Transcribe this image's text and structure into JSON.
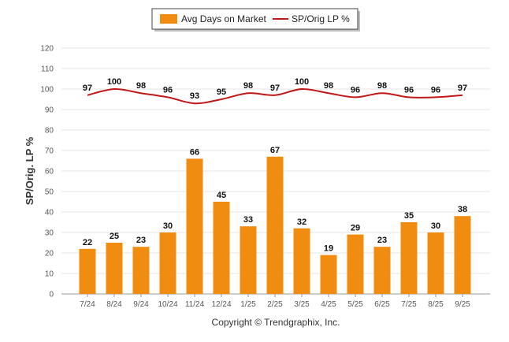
{
  "chart_data": {
    "type": "bar+line",
    "categories": [
      "7/24",
      "8/24",
      "9/24",
      "10/24",
      "11/24",
      "12/24",
      "1/25",
      "2/25",
      "3/25",
      "4/25",
      "5/25",
      "6/25",
      "7/25",
      "8/25",
      "9/25"
    ],
    "series": [
      {
        "name": "Avg Days on Market",
        "kind": "bar",
        "color": "#f08c10",
        "values": [
          22,
          25,
          23,
          30,
          66,
          45,
          33,
          67,
          32,
          19,
          29,
          23,
          35,
          30,
          38
        ]
      },
      {
        "name": "SP/Orig LP %",
        "kind": "line",
        "color": "#c01818",
        "values": [
          97,
          100,
          98,
          96,
          93,
          95,
          98,
          97,
          100,
          98,
          96,
          98,
          96,
          96,
          97
        ]
      }
    ],
    "ylabel": "SP/Orig. LP %",
    "ylim": [
      0,
      120
    ],
    "yticks": [
      0,
      10,
      20,
      30,
      40,
      50,
      60,
      70,
      80,
      90,
      100,
      110,
      120
    ],
    "grid": true,
    "legend": "top-center"
  },
  "footer": "Copyright © Trendgraphix, Inc."
}
